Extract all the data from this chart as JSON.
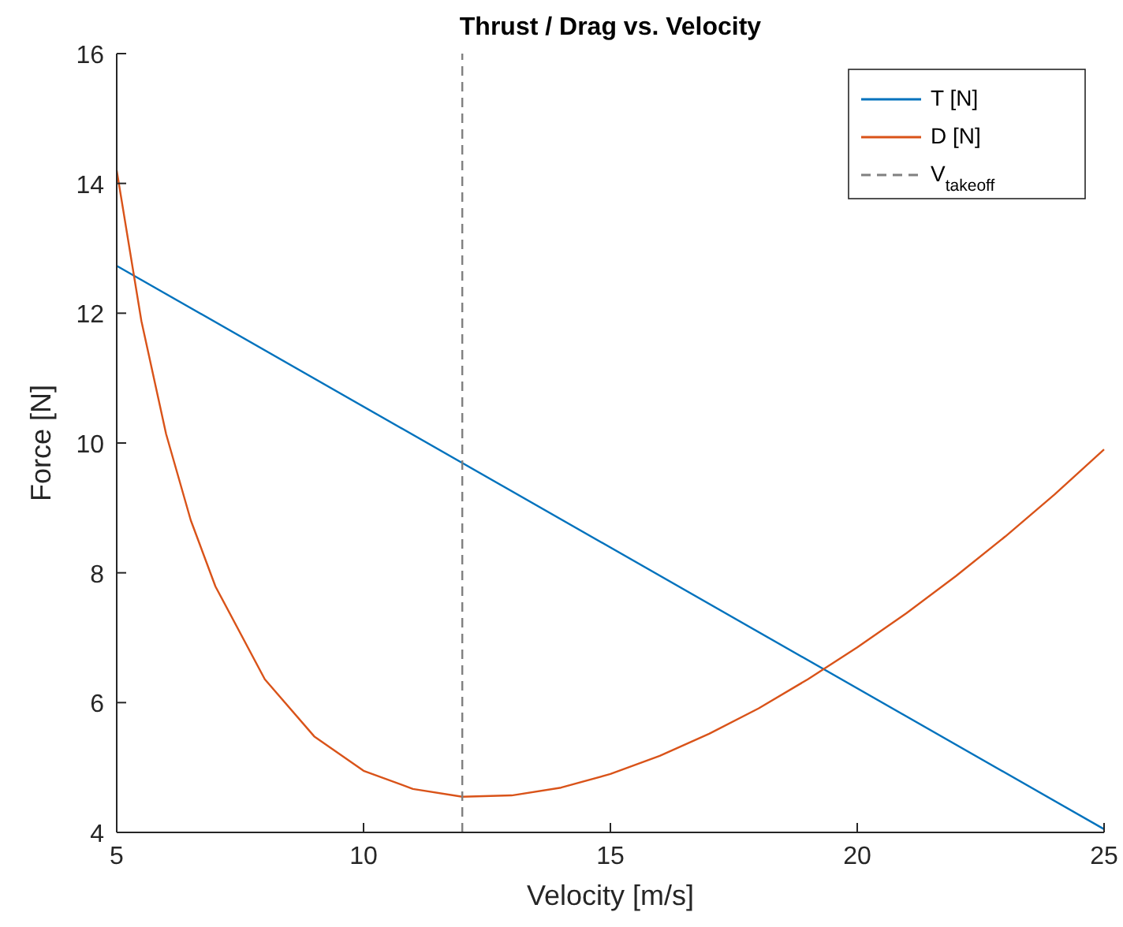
{
  "chart_data": {
    "type": "line",
    "title": "Thrust / Drag vs. Velocity",
    "xlabel": "Velocity [m/s]",
    "ylabel": "Force [N]",
    "xlim": [
      5,
      25
    ],
    "xticks": [
      5,
      10,
      15,
      20,
      25
    ],
    "ylim": [
      4,
      16
    ],
    "yticks": [
      4,
      6,
      8,
      10,
      12,
      14,
      16
    ],
    "grid": false,
    "legend": "top right",
    "line_style": "solid",
    "marker": "none",
    "series": [
      {
        "name": "T [N]",
        "color": "#0072bd",
        "x": [
          5,
          25
        ],
        "values": [
          12.73,
          4.05
        ]
      },
      {
        "name": "D [N]",
        "color": "#d95319",
        "x": [
          5,
          5.5,
          6,
          6.5,
          7,
          8,
          9,
          10,
          11,
          12,
          13,
          14,
          15,
          16,
          17,
          18,
          19,
          20,
          21,
          22,
          23,
          24,
          25
        ],
        "values": [
          14.2,
          11.88,
          10.14,
          8.81,
          7.79,
          6.36,
          5.48,
          4.95,
          4.67,
          4.55,
          4.57,
          4.69,
          4.9,
          5.18,
          5.52,
          5.91,
          6.36,
          6.85,
          7.38,
          7.95,
          8.56,
          9.21,
          9.9
        ]
      },
      {
        "name": "V$_{takeoff}$",
        "color": "#808080",
        "line_style": "dashed",
        "x": [
          12,
          12
        ],
        "values": [
          4,
          16
        ]
      }
    ]
  }
}
